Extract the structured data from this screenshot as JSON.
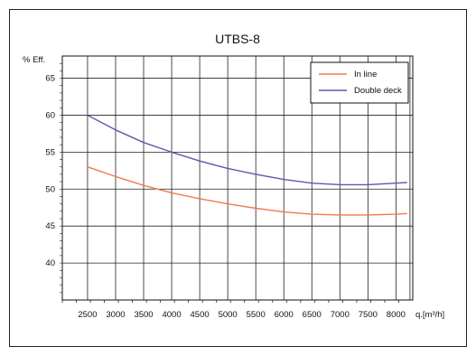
{
  "chart_data": {
    "type": "line",
    "title": "UTBS-8",
    "ylabel": "% Eff.",
    "xlabel": "q.[m³/h]",
    "xlim": [
      2050,
      8300
    ],
    "ylim": [
      35,
      68
    ],
    "yticks": [
      40,
      45,
      50,
      55,
      60,
      65
    ],
    "xticks": [
      2500,
      3000,
      3500,
      4000,
      4500,
      5000,
      5500,
      6000,
      6500,
      7000,
      7500,
      8000
    ],
    "vgrid": [
      2500,
      3000,
      3500,
      4000,
      4500,
      5000,
      5500,
      6000,
      6500,
      7000,
      7500,
      8000,
      8250
    ],
    "grid": true,
    "legend_position": "top-right",
    "series": [
      {
        "name": "In line",
        "color": "#f07a50",
        "x": [
          2500,
          3000,
          3500,
          4000,
          4500,
          5000,
          5500,
          6000,
          6500,
          7000,
          7500,
          8000,
          8200
        ],
        "y": [
          53.0,
          51.7,
          50.5,
          49.5,
          48.7,
          48.0,
          47.4,
          46.9,
          46.6,
          46.5,
          46.5,
          46.6,
          46.7
        ]
      },
      {
        "name": "Double deck",
        "color": "#5a5aaa",
        "x": [
          2500,
          3000,
          3500,
          4000,
          4500,
          5000,
          5500,
          6000,
          6500,
          7000,
          7500,
          8000,
          8200
        ],
        "y": [
          60.0,
          58.0,
          56.3,
          55.0,
          53.8,
          52.8,
          52.0,
          51.3,
          50.8,
          50.6,
          50.6,
          50.8,
          50.9
        ]
      }
    ]
  }
}
